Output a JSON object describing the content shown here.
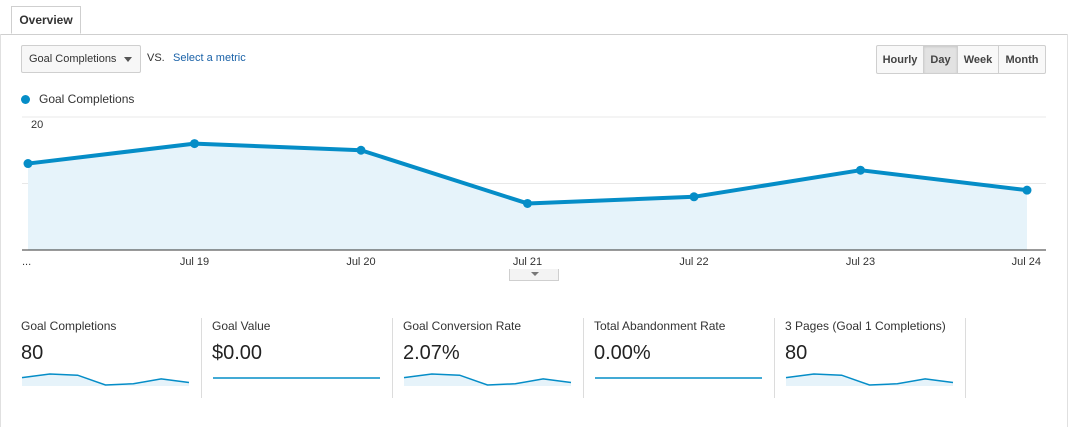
{
  "tabs": [
    {
      "label": "Overview"
    }
  ],
  "controls": {
    "metric_select": "Goal Completions",
    "vs": "VS.",
    "select_metric_link": "Select a metric",
    "granularity_buttons": [
      "Hourly",
      "Day",
      "Week",
      "Month"
    ],
    "granularity_selected": "Day"
  },
  "legend": {
    "label": "Goal Completions",
    "color": "#058dc7"
  },
  "chart_data": {
    "type": "area",
    "x": [
      "...",
      "Jul 19",
      "Jul 20",
      "Jul 21",
      "Jul 22",
      "Jul 23",
      "Jul 24"
    ],
    "series": [
      {
        "name": "Goal Completions",
        "values": [
          13,
          16,
          15,
          7,
          8,
          12,
          9
        ]
      }
    ],
    "yticks": [
      10,
      20
    ],
    "ylim": [
      0,
      20
    ],
    "line_color": "#058dc7",
    "fill_color": "#e6f3fa",
    "grid": true
  },
  "scorecards": [
    {
      "label": "Goal Completions",
      "value": "80",
      "spark": [
        13,
        16,
        15,
        7,
        8,
        12,
        9
      ]
    },
    {
      "label": "Goal Value",
      "value": "$0.00",
      "spark": [
        0,
        0,
        0,
        0,
        0,
        0,
        0
      ]
    },
    {
      "label": "Goal Conversion Rate",
      "value": "2.07%",
      "spark": [
        13,
        16,
        15,
        7,
        8,
        12,
        9
      ]
    },
    {
      "label": "Total Abandonment Rate",
      "value": "0.00%",
      "spark": [
        0,
        0,
        0,
        0,
        0,
        0,
        0
      ]
    },
    {
      "label": "3 Pages (Goal 1 Completions)",
      "value": "80",
      "spark": [
        13,
        16,
        15,
        7,
        8,
        12,
        9
      ]
    }
  ]
}
